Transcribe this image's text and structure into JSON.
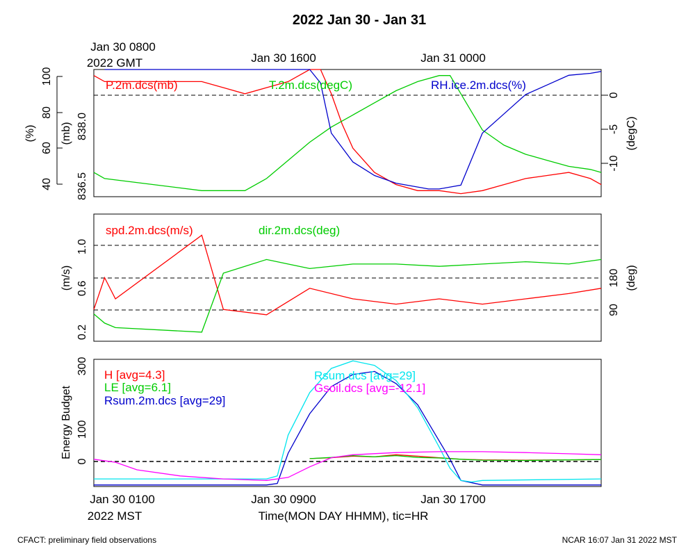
{
  "title": "2022 Jan 30 - Jan 31",
  "top_axis": {
    "ticks": [
      "Jan 30 0800",
      "Jan 30 1600",
      "Jan 31 0000"
    ],
    "sub": "2022 GMT"
  },
  "bottom_axis": {
    "ticks": [
      "Jan 30 0100",
      "Jan 30 0900",
      "Jan 30 1700"
    ],
    "sub": "2022 MST",
    "xlabel": "Time(MON DAY HHMM), tic=HR"
  },
  "footer": {
    "left": "CFACT: preliminary field observations",
    "right": "NCAR 16:07 Jan 31 2022 MST"
  },
  "colors": {
    "red": "#ff0000",
    "green": "#00cc00",
    "blue": "#0000cc",
    "cyan": "#00e5ee",
    "magenta": "#ff00ff",
    "darkblue": "#0000cc"
  },
  "panels": {
    "p1": {
      "labels": {
        "pressure": "P.2m.dcs(mb)",
        "temperature": "T.2m.dcs(degC)",
        "rh": "RH.ice.2m.dcs(%)"
      },
      "axes": {
        "pct_label": "(%)",
        "pct_ticks": [
          "40",
          "60",
          "80",
          "100"
        ],
        "mb_label": "(mb)",
        "mb_ticks": [
          "836.5",
          "838.0"
        ],
        "degc_label": "(degC)",
        "degc_ticks": [
          "0",
          "-5",
          "-10"
        ]
      }
    },
    "p2": {
      "labels": {
        "spd": "spd.2m.dcs(m/s)",
        "dir": "dir.2m.dcs(deg)"
      },
      "axes": {
        "ms_label": "(m/s)",
        "ms_ticks": [
          "0.2",
          "0.6",
          "1.0"
        ],
        "deg_label": "(deg)",
        "deg_ticks": [
          "90",
          "180"
        ]
      }
    },
    "p3": {
      "labels": {
        "H": "H [avg=4.3]",
        "LE": "LE [avg=6.1]",
        "Rsum2m": "Rsum.2m.dcs [avg=29]",
        "Rsum": "Rsum.dcs [avg=29]",
        "Gsoil": "Gsoil.dcs [avg=-12.1]"
      },
      "axes": {
        "ylabel": "Energy Budget",
        "ticks": [
          "0",
          "100",
          "300"
        ]
      }
    }
  },
  "chart_data": [
    {
      "type": "line",
      "title": "2022 Jan 30 - Jan 31",
      "x_unit": "hours since Jan 30 0000 MST",
      "xlim": [
        0,
        23.5
      ],
      "series": [
        {
          "name": "P.2m.dcs(mb)",
          "axis": "mb",
          "ylim": [
            836.5,
            838.6
          ],
          "x": [
            0,
            0.5,
            5.0,
            6,
            7,
            8,
            9,
            10,
            10.5,
            11,
            11.5,
            12,
            13,
            14,
            15,
            16,
            17,
            18,
            19,
            20,
            21,
            22,
            23,
            23.5
          ],
          "y": [
            838.5,
            838.4,
            838.4,
            838.3,
            838.2,
            838.3,
            838.4,
            838.6,
            838.6,
            838.2,
            837.7,
            837.3,
            836.9,
            836.7,
            836.6,
            836.6,
            836.55,
            836.6,
            836.7,
            836.8,
            836.85,
            836.9,
            836.8,
            836.7
          ]
        },
        {
          "name": "T.2m.dcs(degC)",
          "axis": "degC",
          "ylim": [
            -15,
            6
          ],
          "x": [
            0,
            0.5,
            5.0,
            6,
            7,
            8,
            9,
            10,
            11,
            12,
            13,
            14,
            15,
            16,
            16.5,
            17,
            18,
            19,
            20,
            21,
            22,
            23,
            23.5
          ],
          "y": [
            -11,
            -12,
            -14,
            -14,
            -14,
            -12,
            -9,
            -6,
            -3.5,
            -1.5,
            0.5,
            2.5,
            4,
            5,
            5,
            2,
            -4,
            -6.5,
            -8,
            -9,
            -10,
            -10.5,
            -11
          ]
        },
        {
          "name": "RH.ice.2m.dcs(%)",
          "axis": "pct",
          "ylim": [
            37,
            103
          ],
          "x": [
            0.5,
            5.0,
            6,
            7,
            8,
            9,
            10,
            10.5,
            11,
            12,
            13,
            14,
            15,
            15.5,
            16,
            17,
            18,
            19,
            20,
            21,
            22,
            23,
            23.5
          ],
          "y": [
            103,
            103,
            103,
            103,
            103,
            103,
            103,
            96,
            70,
            55,
            48,
            44,
            42,
            41,
            41,
            43,
            70,
            80,
            90,
            95,
            100,
            101,
            102
          ]
        }
      ]
    },
    {
      "type": "line",
      "x_unit": "hours since Jan 30 0000 MST",
      "xlim": [
        0,
        23.5
      ],
      "series": [
        {
          "name": "spd.2m.dcs(m/s)",
          "axis": "m/s",
          "ylim": [
            0.1,
            1.3
          ],
          "x": [
            0,
            0.5,
            1,
            5.0,
            6,
            8,
            10,
            12,
            14,
            16,
            18,
            20,
            22,
            23.5
          ],
          "y": [
            0.4,
            0.7,
            0.5,
            1.1,
            0.4,
            0.35,
            0.6,
            0.5,
            0.45,
            0.5,
            0.45,
            0.5,
            0.55,
            0.6
          ]
        },
        {
          "name": "dir.2m.dcs(deg)",
          "axis": "deg",
          "ylim": [
            0,
            280
          ],
          "x": [
            0,
            0.5,
            1,
            5.0,
            6,
            8,
            10,
            12,
            14,
            16,
            18,
            20,
            22,
            23.5
          ],
          "y": [
            60,
            40,
            30,
            20,
            150,
            180,
            160,
            170,
            170,
            165,
            170,
            175,
            170,
            180
          ]
        }
      ]
    },
    {
      "type": "line",
      "x_unit": "hours since Jan 30 0000 MST",
      "xlim": [
        0,
        23.5
      ],
      "ylim": [
        -90,
        330
      ],
      "ylabel": "Energy Budget",
      "series": [
        {
          "name": "H [avg=4.3]",
          "x": [
            10,
            11,
            12,
            13,
            14,
            15,
            16,
            17,
            18,
            20,
            22,
            23.5
          ],
          "y": [
            2,
            5,
            10,
            8,
            15,
            10,
            5,
            0,
            -2,
            -3,
            -2,
            -1
          ]
        },
        {
          "name": "LE [avg=6.1]",
          "x": [
            10,
            11,
            12,
            13,
            14,
            15,
            16,
            17,
            18,
            20,
            22,
            23.5
          ],
          "y": [
            2,
            6,
            12,
            8,
            12,
            6,
            4,
            0,
            -3,
            -4,
            -2,
            -1
          ]
        },
        {
          "name": "Rsum.2m.dcs [avg=29]",
          "x": [
            0,
            8,
            8.5,
            9,
            10,
            11,
            12,
            13,
            14,
            15,
            16,
            16.5,
            17,
            18,
            23.5
          ],
          "y": [
            -85,
            -85,
            -80,
            20,
            150,
            240,
            280,
            290,
            250,
            180,
            60,
            0,
            -70,
            -85,
            -85
          ]
        },
        {
          "name": "Rsum.dcs [avg=29]",
          "x": [
            0,
            8,
            8.5,
            9,
            10,
            11,
            12,
            13,
            14,
            15,
            16,
            16.5,
            17,
            17.5,
            18,
            23.5
          ],
          "y": [
            -65,
            -65,
            -55,
            80,
            220,
            300,
            325,
            310,
            260,
            170,
            40,
            -30,
            -70,
            -75,
            -70,
            -65
          ]
        },
        {
          "name": "Gsoil.dcs [avg=-12.1]",
          "x": [
            0,
            1,
            2,
            4,
            6,
            8,
            9,
            10,
            11,
            12,
            14,
            16,
            18,
            20,
            22,
            23.5
          ],
          "y": [
            0,
            -10,
            -35,
            -55,
            -65,
            -70,
            -60,
            -25,
            5,
            15,
            22,
            25,
            25,
            22,
            18,
            15
          ]
        }
      ]
    }
  ]
}
